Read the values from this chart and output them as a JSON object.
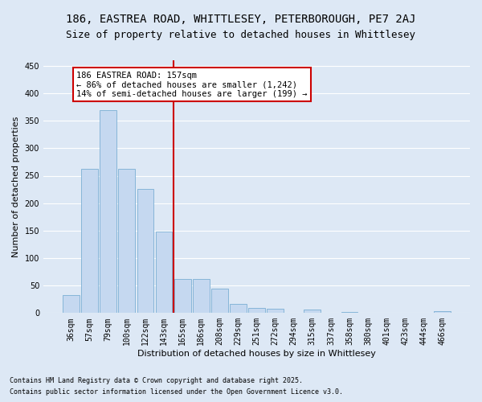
{
  "title": "186, EASTREA ROAD, WHITTLESEY, PETERBOROUGH, PE7 2AJ",
  "subtitle": "Size of property relative to detached houses in Whittlesey",
  "xlabel": "Distribution of detached houses by size in Whittlesey",
  "ylabel": "Number of detached properties",
  "categories": [
    "36sqm",
    "57sqm",
    "79sqm",
    "100sqm",
    "122sqm",
    "143sqm",
    "165sqm",
    "186sqm",
    "208sqm",
    "229sqm",
    "251sqm",
    "272sqm",
    "294sqm",
    "315sqm",
    "337sqm",
    "358sqm",
    "380sqm",
    "401sqm",
    "423sqm",
    "444sqm",
    "466sqm"
  ],
  "values": [
    32,
    262,
    370,
    262,
    226,
    148,
    62,
    62,
    45,
    17,
    10,
    8,
    0,
    6,
    0,
    2,
    0,
    0,
    0,
    0,
    3
  ],
  "bar_color": "#c5d8f0",
  "bar_edge_color": "#7bafd4",
  "vline_color": "#cc0000",
  "annotation_text": "186 EASTREA ROAD: 157sqm\n← 86% of detached houses are smaller (1,242)\n14% of semi-detached houses are larger (199) →",
  "annotation_box_color": "#ffffff",
  "annotation_box_edge": "#cc0000",
  "ylim": [
    0,
    460
  ],
  "yticks": [
    0,
    50,
    100,
    150,
    200,
    250,
    300,
    350,
    400,
    450
  ],
  "footnote1": "Contains HM Land Registry data © Crown copyright and database right 2025.",
  "footnote2": "Contains public sector information licensed under the Open Government Licence v3.0.",
  "bg_color": "#dde8f5",
  "grid_color": "#ffffff",
  "title_fontsize": 10,
  "subtitle_fontsize": 9,
  "axis_label_fontsize": 8,
  "tick_fontsize": 7,
  "annotation_fontsize": 7.5,
  "footnote_fontsize": 6
}
